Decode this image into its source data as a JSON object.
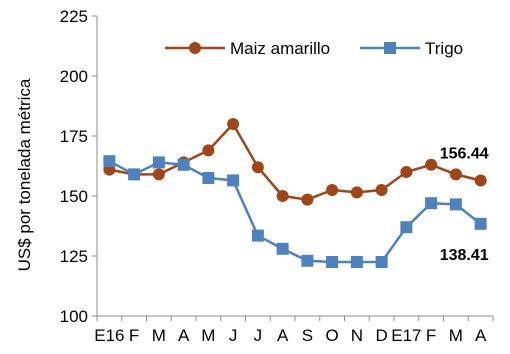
{
  "chart_data": {
    "type": "line",
    "title": "",
    "xlabel": "",
    "ylabel": "US$ por tonelada métrica",
    "categories": [
      "E16",
      "F",
      "M",
      "A",
      "M",
      "J",
      "J",
      "A",
      "S",
      "O",
      "N",
      "D",
      "E17",
      "F",
      "M",
      "A"
    ],
    "ylim": [
      100,
      225
    ],
    "yticks": [
      100,
      125,
      150,
      175,
      200,
      225
    ],
    "grid": false,
    "legend_position": "top-right",
    "series": [
      {
        "name": "Maiz amarillo",
        "color": "#a0451a",
        "marker": "circle",
        "values": [
          161,
          159,
          159,
          164,
          169,
          180,
          162,
          150,
          148.5,
          152.5,
          151.5,
          152.5,
          160,
          163,
          159,
          156.44
        ]
      },
      {
        "name": "Trigo",
        "color": "#4f81bd",
        "marker": "square",
        "values": [
          164.5,
          159,
          164,
          163,
          157.5,
          156.5,
          133.5,
          128,
          123,
          122.5,
          122.5,
          122.5,
          137,
          147,
          146.5,
          138.41
        ]
      }
    ],
    "annotations": [
      {
        "series": 0,
        "index": 15,
        "text": "156.44"
      },
      {
        "series": 1,
        "index": 15,
        "text": "138.41"
      }
    ]
  }
}
